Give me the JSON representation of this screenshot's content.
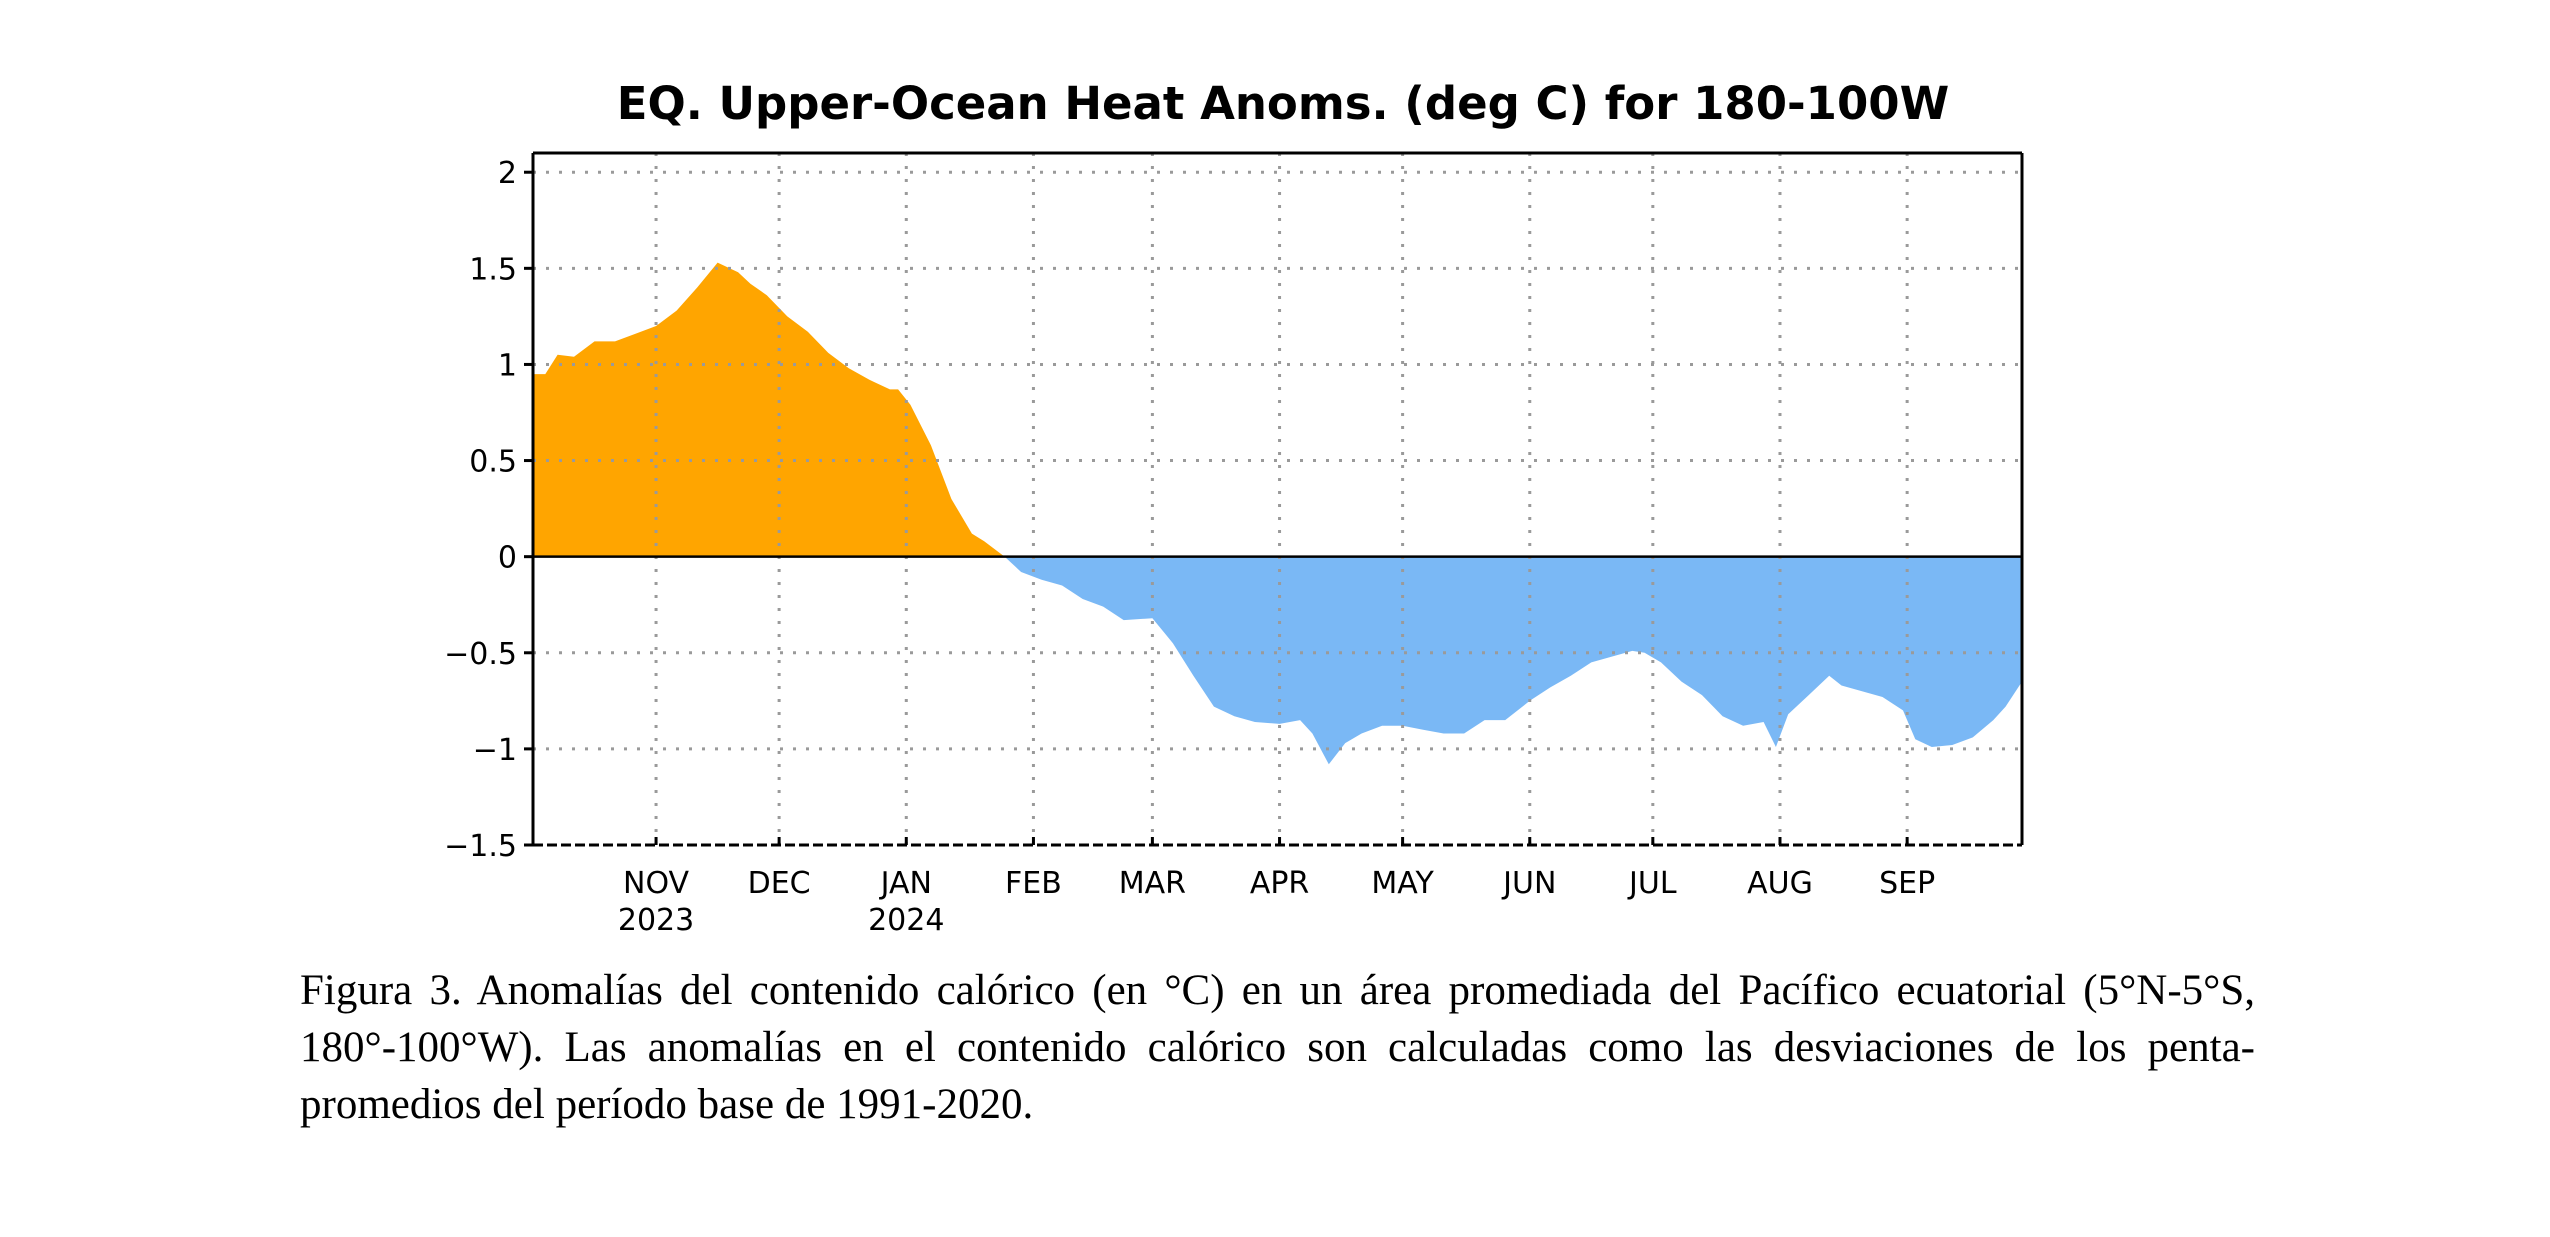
{
  "chart_data": {
    "type": "area",
    "title": "EQ. Upper-Ocean Heat Anoms. (deg C) for 180-100W",
    "xlabel": "",
    "ylabel": "",
    "ylim": [
      -1.5,
      2.1
    ],
    "yticks": [
      2,
      1.5,
      1,
      0.5,
      0,
      -0.5,
      -1,
      -1.5
    ],
    "ytick_labels": [
      "2",
      "1.5",
      "1",
      "0.5",
      "0",
      "−0.5",
      "−1",
      "−1.5"
    ],
    "xlim": [
      "2023-10-02",
      "2024-09-29"
    ],
    "grid": true,
    "positive_color": "#FFA500",
    "negative_color": "#7AB8F5",
    "month_ticks": [
      {
        "date": "2023-11-01",
        "label": "NOV",
        "year": "2023"
      },
      {
        "date": "2023-12-01",
        "label": "DEC",
        "year": ""
      },
      {
        "date": "2024-01-01",
        "label": "JAN",
        "year": "2024"
      },
      {
        "date": "2024-02-01",
        "label": "FEB",
        "year": ""
      },
      {
        "date": "2024-03-01",
        "label": "MAR",
        "year": ""
      },
      {
        "date": "2024-04-01",
        "label": "APR",
        "year": ""
      },
      {
        "date": "2024-05-01",
        "label": "MAY",
        "year": ""
      },
      {
        "date": "2024-06-01",
        "label": "JUN",
        "year": ""
      },
      {
        "date": "2024-07-01",
        "label": "JUL",
        "year": ""
      },
      {
        "date": "2024-08-01",
        "label": "AUG",
        "year": ""
      },
      {
        "date": "2024-09-01",
        "label": "SEP",
        "year": ""
      }
    ],
    "x": [
      "2023-10-02",
      "2023-10-05",
      "2023-10-08",
      "2023-10-12",
      "2023-10-17",
      "2023-10-22",
      "2023-10-27",
      "2023-11-01",
      "2023-11-06",
      "2023-11-11",
      "2023-11-16",
      "2023-11-21",
      "2023-11-24",
      "2023-11-28",
      "2023-12-03",
      "2023-12-08",
      "2023-12-13",
      "2023-12-18",
      "2023-12-23",
      "2023-12-28",
      "2023-12-30",
      "2024-01-02",
      "2024-01-07",
      "2024-01-12",
      "2024-01-17",
      "2024-01-20",
      "2024-01-25",
      "2024-01-29",
      "2024-02-03",
      "2024-02-08",
      "2024-02-13",
      "2024-02-18",
      "2024-02-23",
      "2024-03-01",
      "2024-03-06",
      "2024-03-11",
      "2024-03-16",
      "2024-03-21",
      "2024-03-26",
      "2024-04-01",
      "2024-04-06",
      "2024-04-09",
      "2024-04-13",
      "2024-04-17",
      "2024-04-21",
      "2024-04-26",
      "2024-05-01",
      "2024-05-06",
      "2024-05-11",
      "2024-05-16",
      "2024-05-21",
      "2024-05-26",
      "2024-06-01",
      "2024-06-06",
      "2024-06-11",
      "2024-06-16",
      "2024-06-21",
      "2024-06-26",
      "2024-06-29",
      "2024-07-03",
      "2024-07-08",
      "2024-07-13",
      "2024-07-18",
      "2024-07-23",
      "2024-07-28",
      "2024-07-31",
      "2024-08-03",
      "2024-08-08",
      "2024-08-13",
      "2024-08-16",
      "2024-08-21",
      "2024-08-26",
      "2024-08-31",
      "2024-09-03",
      "2024-09-07",
      "2024-09-12",
      "2024-09-17",
      "2024-09-22",
      "2024-09-25",
      "2024-09-29"
    ],
    "values": [
      0.95,
      0.95,
      1.05,
      1.04,
      1.12,
      1.12,
      1.16,
      1.2,
      1.28,
      1.4,
      1.53,
      1.48,
      1.42,
      1.36,
      1.25,
      1.17,
      1.06,
      0.98,
      0.92,
      0.87,
      0.87,
      0.79,
      0.58,
      0.3,
      0.12,
      0.08,
      0.0,
      -0.08,
      -0.12,
      -0.15,
      -0.22,
      -0.26,
      -0.33,
      -0.32,
      -0.45,
      -0.62,
      -0.78,
      -0.83,
      -0.86,
      -0.87,
      -0.85,
      -0.92,
      -1.08,
      -0.97,
      -0.92,
      -0.88,
      -0.88,
      -0.9,
      -0.92,
      -0.92,
      -0.85,
      -0.85,
      -0.75,
      -0.68,
      -0.62,
      -0.55,
      -0.52,
      -0.49,
      -0.5,
      -0.55,
      -0.65,
      -0.72,
      -0.83,
      -0.88,
      -0.86,
      -0.99,
      -0.82,
      -0.72,
      -0.62,
      -0.67,
      -0.7,
      -0.73,
      -0.8,
      -0.95,
      -0.99,
      -0.98,
      -0.94,
      -0.85,
      -0.78,
      -0.65
    ]
  },
  "caption": "Figura 3. Anomalías del contenido calórico (en °C) en un área promediada del Pacífico ecuatorial (5°N-5°S, 180°-100°W). Las anomalías en el contenido calórico son calculadas como las desviaciones de los penta-promedios del período base de 1991-2020."
}
